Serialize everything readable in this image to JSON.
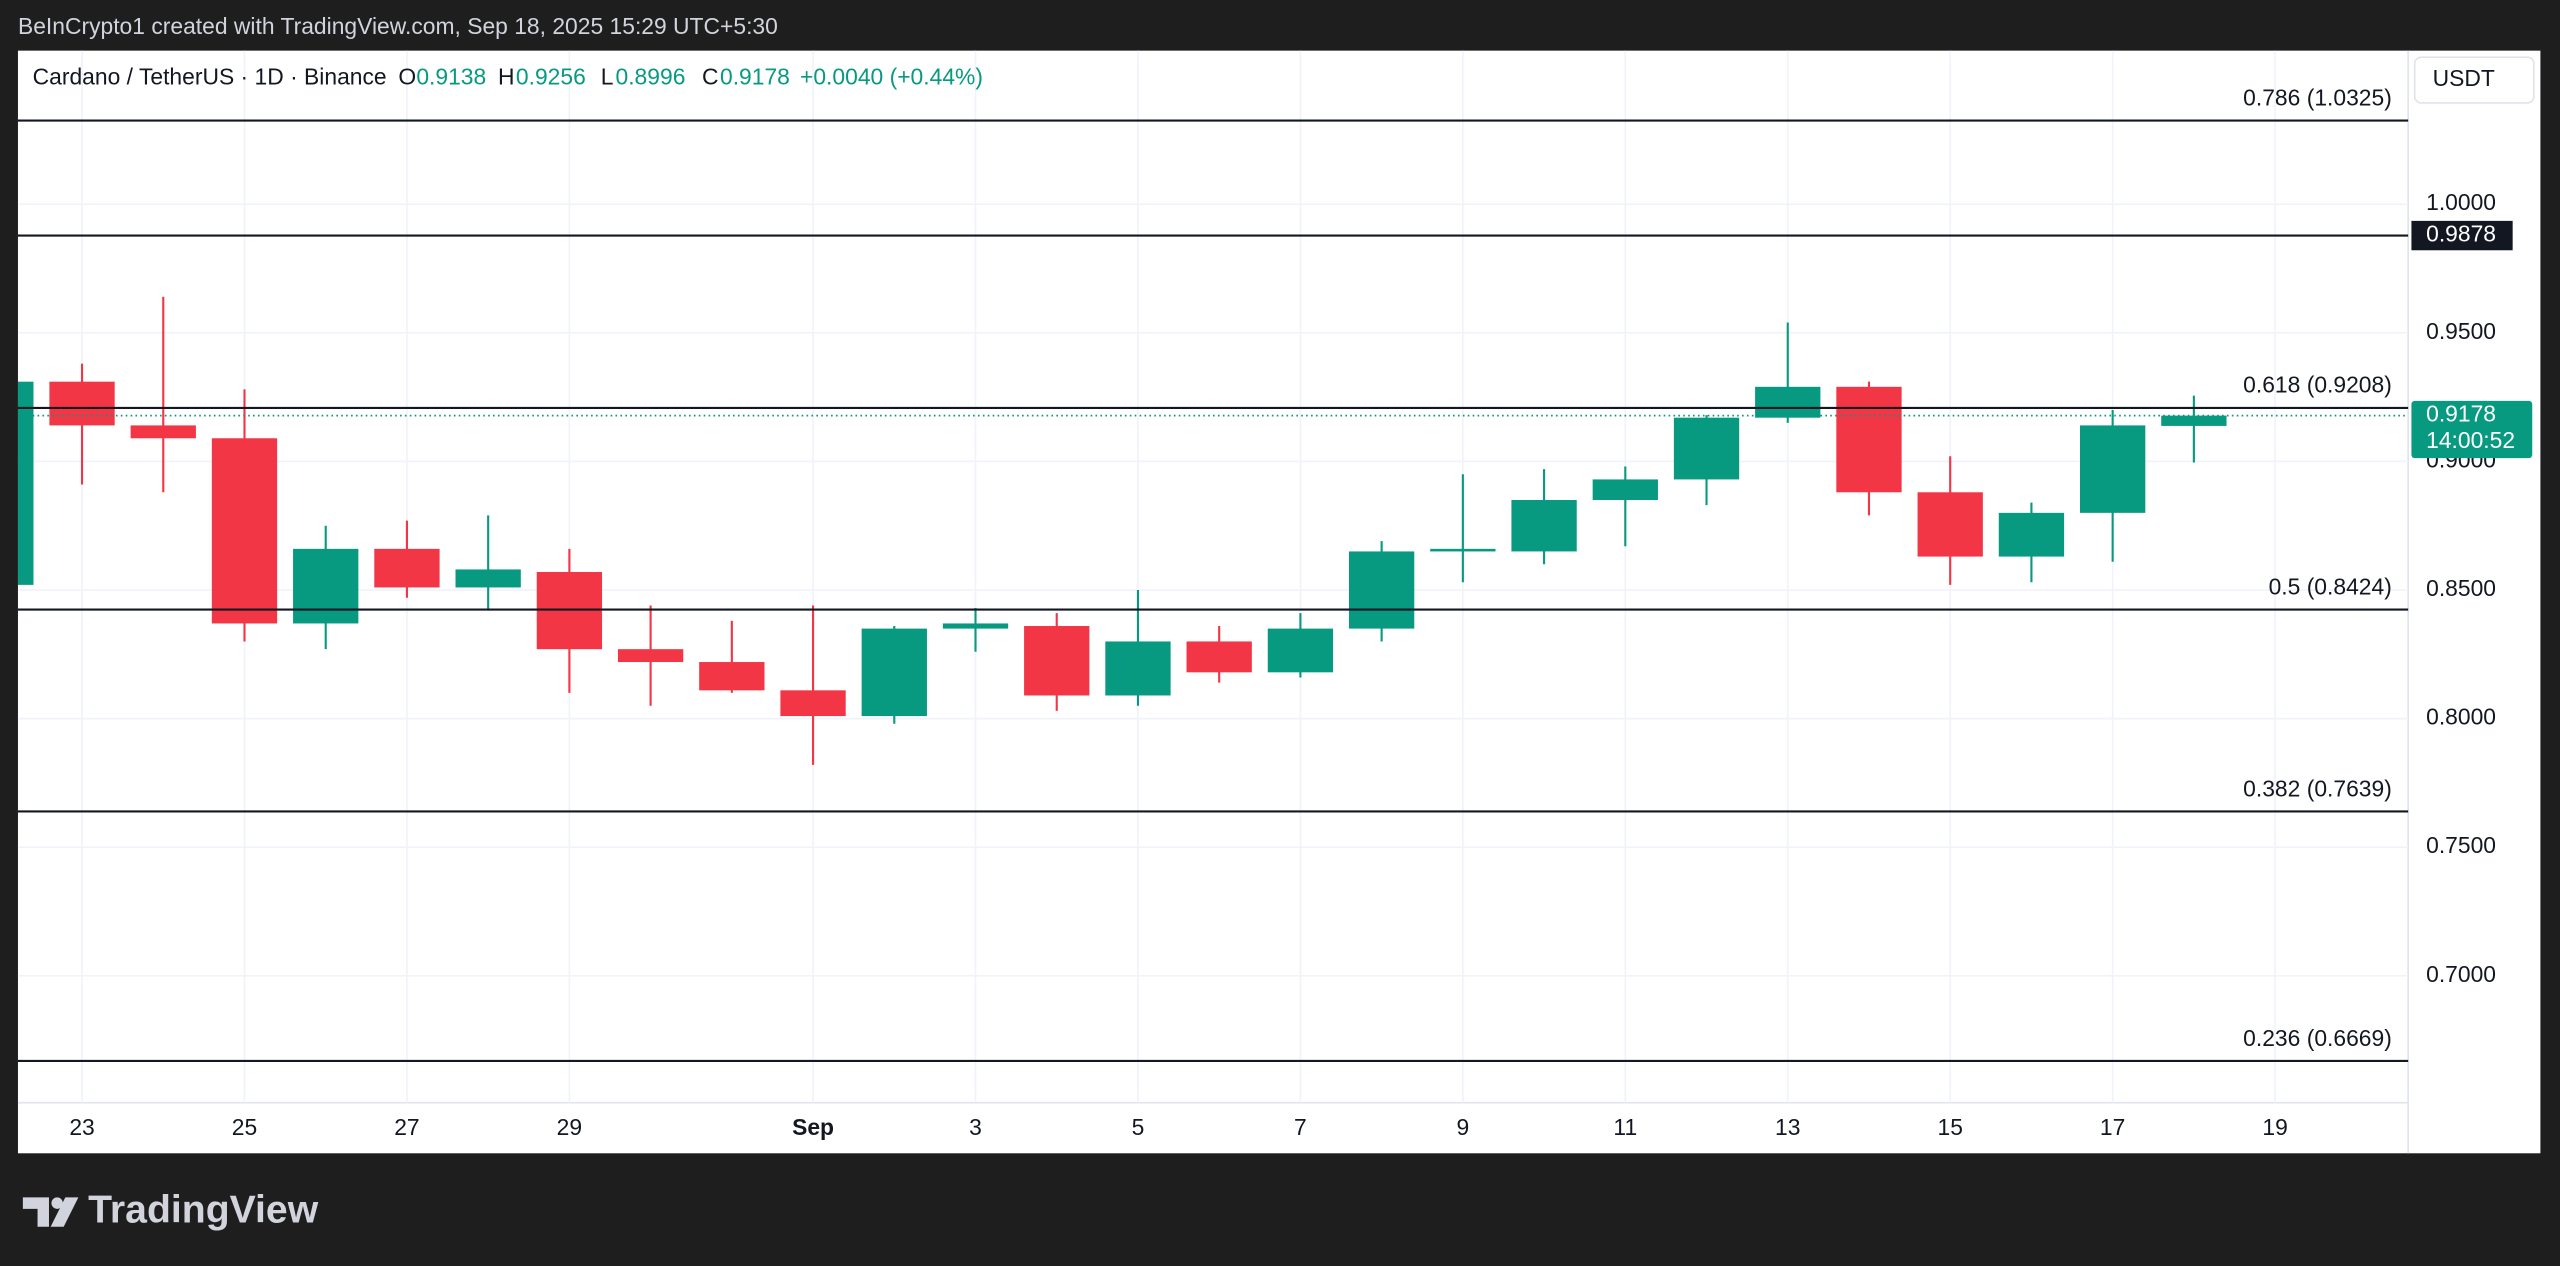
{
  "header": {
    "text": "BeInCrypto1 created with TradingView.com, Sep 18, 2025 15:29 UTC+5:30"
  },
  "chart_data": {
    "type": "candlestick",
    "symbol": "Cardano / TetherUS · 1D · Binance",
    "legend_labels": [
      "O",
      "H",
      "L",
      "C"
    ],
    "change": "+0.0040 (+0.44%)",
    "currency": "USDT",
    "x": [
      "Aug 22",
      "Aug 23",
      "Aug 24",
      "Aug 25",
      "Aug 26",
      "Aug 27",
      "Aug 28",
      "Aug 29",
      "Aug 30",
      "Aug 31",
      "Sep 1",
      "Sep 2",
      "Sep 3",
      "Sep 4",
      "Sep 5",
      "Sep 6",
      "Sep 7",
      "Sep 8",
      "Sep 9",
      "Sep 10",
      "Sep 11",
      "Sep 12",
      "Sep 13",
      "Sep 14",
      "Sep 15",
      "Sep 16",
      "Sep 17",
      "Sep 18"
    ],
    "open": [
      0.852,
      0.931,
      0.914,
      0.909,
      0.837,
      0.866,
      0.851,
      0.857,
      0.827,
      0.822,
      0.811,
      0.801,
      0.835,
      0.836,
      0.809,
      0.83,
      0.818,
      0.835,
      0.865,
      0.865,
      0.885,
      0.893,
      0.917,
      0.929,
      0.888,
      0.863,
      0.88,
      0.9138
    ],
    "high": [
      0.935,
      0.938,
      0.964,
      0.928,
      0.875,
      0.877,
      0.879,
      0.866,
      0.844,
      0.838,
      0.844,
      0.836,
      0.843,
      0.841,
      0.85,
      0.836,
      0.841,
      0.869,
      0.895,
      0.897,
      0.898,
      0.918,
      0.954,
      0.931,
      0.902,
      0.884,
      0.92,
      0.9256
    ],
    "low": [
      0.85,
      0.891,
      0.888,
      0.83,
      0.827,
      0.847,
      0.842,
      0.81,
      0.805,
      0.81,
      0.782,
      0.798,
      0.826,
      0.803,
      0.805,
      0.814,
      0.816,
      0.83,
      0.853,
      0.86,
      0.867,
      0.883,
      0.915,
      0.879,
      0.852,
      0.853,
      0.861,
      0.8996
    ],
    "close": [
      0.931,
      0.914,
      0.909,
      0.837,
      0.866,
      0.851,
      0.858,
      0.827,
      0.822,
      0.811,
      0.801,
      0.835,
      0.837,
      0.809,
      0.83,
      0.818,
      0.835,
      0.865,
      0.866,
      0.885,
      0.893,
      0.917,
      0.929,
      0.888,
      0.863,
      0.88,
      0.914,
      0.9178
    ],
    "up_color": "#089981",
    "down_color": "#f23645",
    "ylim": [
      0.6507,
      1.0597
    ],
    "yticks": [
      {
        "value": 0.7,
        "label": "0.7000"
      },
      {
        "value": 0.75,
        "label": "0.7500"
      },
      {
        "value": 0.8,
        "label": "0.8000"
      },
      {
        "value": 0.85,
        "label": "0.8500"
      },
      {
        "value": 0.9,
        "label": "0.9000"
      },
      {
        "value": 0.95,
        "label": "0.9500"
      },
      {
        "value": 1.0,
        "label": "1.0000"
      }
    ],
    "xticks": [
      {
        "value": "Aug 23",
        "label": "23"
      },
      {
        "value": "Aug 25",
        "label": "25"
      },
      {
        "value": "Aug 27",
        "label": "27"
      },
      {
        "value": "Aug 29",
        "label": "29"
      },
      {
        "value": "Sep 1",
        "label": "Sep"
      },
      {
        "value": "Sep 3",
        "label": "3"
      },
      {
        "value": "Sep 5",
        "label": "5"
      },
      {
        "value": "Sep 7",
        "label": "7"
      },
      {
        "value": "Sep 9",
        "label": "9"
      },
      {
        "value": "Sep 11",
        "label": "11"
      },
      {
        "value": "Sep 13",
        "label": "13"
      },
      {
        "value": "Sep 15",
        "label": "15"
      },
      {
        "value": "Sep 17",
        "label": "17"
      },
      {
        "value": "Sep 19",
        "label": "19"
      }
    ],
    "grid": true,
    "levels": [
      {
        "value": 1.0325,
        "label": "0.786 (1.0325)"
      },
      {
        "value": 0.9208,
        "label": "0.618 (0.9208)"
      },
      {
        "value": 0.8424,
        "label": "0.5 (0.8424)"
      },
      {
        "value": 0.7639,
        "label": "0.382 (0.7639)"
      },
      {
        "value": 0.6669,
        "label": "0.236 (0.6669)"
      }
    ],
    "marker_line": 0.9878,
    "countdown": "14:00:52"
  },
  "footer": {
    "brand": "TradingView"
  }
}
